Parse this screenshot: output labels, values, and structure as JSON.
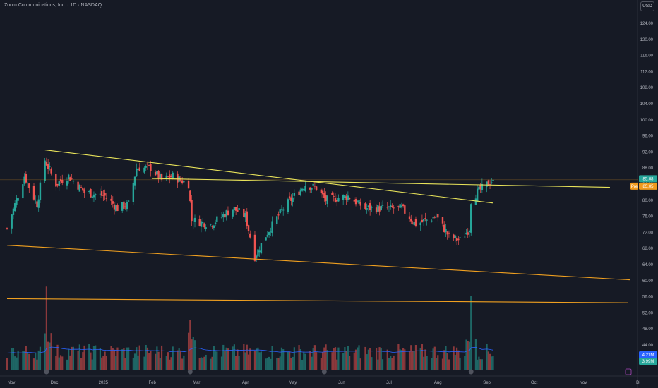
{
  "header": {
    "title": "Zoom Communications, Inc. · 1D · NASDAQ",
    "currency_button": "USD"
  },
  "price_axis": {
    "ticks": [
      "124.00",
      "120.00",
      "116.00",
      "112.00",
      "108.00",
      "104.00",
      "100.00",
      "96.00",
      "92.00",
      "88.00",
      "84.00",
      "80.00",
      "76.00",
      "72.00",
      "68.00",
      "64.00",
      "60.00",
      "56.00",
      "52.00",
      "48.00",
      "44.00"
    ]
  },
  "time_axis": {
    "labels": [
      "Nov",
      "Dec",
      "2025",
      "Feb",
      "Mar",
      "Apr",
      "May",
      "Jun",
      "Jul",
      "Aug",
      "Sep",
      "Oct",
      "Nov",
      "Di"
    ]
  },
  "tags": {
    "last_price": "85.08",
    "pre_label": "Pre",
    "pre_price": "85.05",
    "volume_1": "4.21M",
    "volume_2": "3.99M"
  },
  "colors": {
    "up": "#26a69a",
    "down": "#ef5350",
    "trend_yellow": "#e8e35a",
    "trend_orange": "#f0a020",
    "vol_ma": "#2962ff"
  },
  "chart_data": {
    "type": "candlestick",
    "symbol": "Zoom Communications, Inc.",
    "interval": "1D",
    "exchange": "NASDAQ",
    "ylim": [
      44,
      124
    ],
    "x_range": [
      "2024-11-01",
      "2025-12-01"
    ],
    "price_anchors": [
      {
        "date": "2024-11-01",
        "close": 73
      },
      {
        "date": "2024-11-12",
        "close": 86
      },
      {
        "date": "2024-11-20",
        "close": 79
      },
      {
        "date": "2024-11-25",
        "close": 90
      },
      {
        "date": "2024-12-02",
        "close": 84
      },
      {
        "date": "2024-12-10",
        "close": 86
      },
      {
        "date": "2024-12-20",
        "close": 82
      },
      {
        "date": "2025-01-02",
        "close": 81
      },
      {
        "date": "2025-01-10",
        "close": 78
      },
      {
        "date": "2025-01-17",
        "close": 79
      },
      {
        "date": "2025-01-22",
        "close": 88
      },
      {
        "date": "2025-01-31",
        "close": 88
      },
      {
        "date": "2025-02-07",
        "close": 85
      },
      {
        "date": "2025-02-14",
        "close": 86
      },
      {
        "date": "2025-02-24",
        "close": 84
      },
      {
        "date": "2025-02-26",
        "close": 75
      },
      {
        "date": "2025-03-10",
        "close": 74
      },
      {
        "date": "2025-03-24",
        "close": 78
      },
      {
        "date": "2025-04-01",
        "close": 76
      },
      {
        "date": "2025-04-07",
        "close": 66
      },
      {
        "date": "2025-04-15",
        "close": 72
      },
      {
        "date": "2025-04-25",
        "close": 78
      },
      {
        "date": "2025-05-09",
        "close": 84
      },
      {
        "date": "2025-05-16",
        "close": 83
      },
      {
        "date": "2025-05-22",
        "close": 80
      },
      {
        "date": "2025-06-05",
        "close": 81
      },
      {
        "date": "2025-06-16",
        "close": 78
      },
      {
        "date": "2025-06-30",
        "close": 78
      },
      {
        "date": "2025-07-09",
        "close": 78
      },
      {
        "date": "2025-07-18",
        "close": 74
      },
      {
        "date": "2025-07-31",
        "close": 76
      },
      {
        "date": "2025-08-08",
        "close": 71
      },
      {
        "date": "2025-08-15",
        "close": 70
      },
      {
        "date": "2025-08-21",
        "close": 73
      },
      {
        "date": "2025-08-22",
        "close": 80
      },
      {
        "date": "2025-08-26",
        "close": 82
      },
      {
        "date": "2025-09-05",
        "close": 85.08
      }
    ],
    "volume_spikes": [
      {
        "date": "2024-11-26",
        "volume_rel": 0.95
      },
      {
        "date": "2025-02-25",
        "volume_rel": 0.57
      },
      {
        "date": "2025-08-22",
        "volume_rel": 0.84
      }
    ],
    "trendlines": [
      {
        "color": "yellow",
        "from": {
          "date": "2024-11-25",
          "price": 92.5
        },
        "to": {
          "date": "2025-09-05",
          "price": 79.3
        }
      },
      {
        "color": "yellow",
        "from": {
          "date": "2025-02-01",
          "price": 85.4
        },
        "to": {
          "date": "2025-11-18",
          "price": 83.2
        }
      },
      {
        "color": "orange",
        "from": {
          "date": "2024-11-01",
          "price": 68.8
        },
        "to": {
          "date": "2025-12-01",
          "price": 60.2
        }
      },
      {
        "color": "orange",
        "from": {
          "date": "2024-11-01",
          "price": 55.5
        },
        "to": {
          "date": "2025-12-01",
          "price": 54.5
        }
      }
    ],
    "horizontal_line": {
      "price": 85.08
    }
  }
}
